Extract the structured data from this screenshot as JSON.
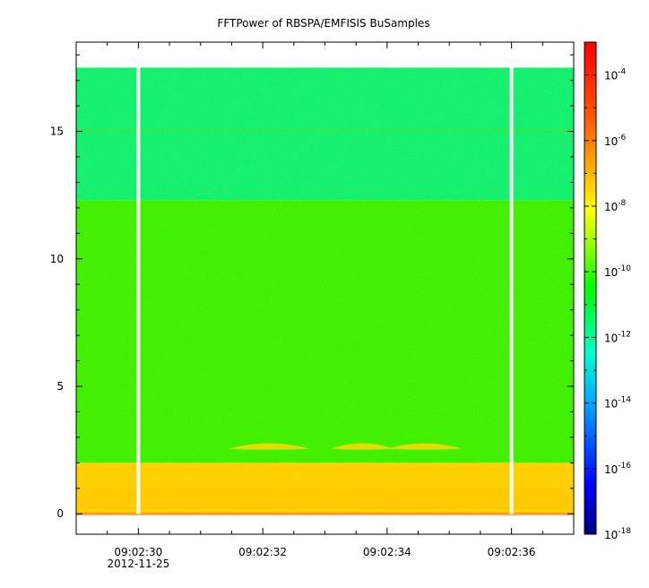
{
  "chart_data": {
    "type": "heatmap",
    "title": "FFTPower of RBSPA/EMFISIS  BuSamples",
    "xlabel": "",
    "ylabel": "",
    "x_axis": {
      "type": "time",
      "range": [
        "09:02:29.0",
        "09:02:37.0"
      ],
      "ticks": [
        "09:02:30",
        "09:02:32",
        "09:02:34",
        "09:02:36"
      ],
      "tick_seconds": [
        30,
        32,
        34,
        36
      ],
      "range_seconds": [
        29.0,
        37.0
      ],
      "date_label": "2012-11-25"
    },
    "y_axis": {
      "range": [
        -0.8,
        18.5
      ],
      "ticks": [
        0,
        5,
        10,
        15
      ]
    },
    "colorbar": {
      "scale": "log",
      "range": [
        "1e-18",
        "1e-3"
      ],
      "tick_exponents": [
        -18,
        -16,
        -14,
        -12,
        -10,
        -8,
        -6,
        -4
      ],
      "tick_base": "10",
      "tick_labels": [
        "-18",
        "-16",
        "-14",
        "-12",
        "-10",
        "-8",
        "-6",
        "-4"
      ],
      "colors": [
        "#00007f",
        "#0000ff",
        "#00aaff",
        "#00ffcc",
        "#00ff00",
        "#aaff00",
        "#ffff00",
        "#ffaa00",
        "#ff5500",
        "#ff0000"
      ]
    },
    "data_extent": {
      "x_seconds": [
        29.0,
        37.0
      ],
      "y": [
        0,
        17.5
      ]
    },
    "gaps_seconds": [
      30.0,
      36.0
    ],
    "bands": [
      {
        "y_range": [
          0,
          2.0
        ],
        "log10_power": -8.5,
        "color": "#ffd000"
      },
      {
        "y_range": [
          2.0,
          12.3
        ],
        "log10_power": -10.0,
        "color": "#3cf000"
      },
      {
        "y_range": [
          12.3,
          17.5
        ],
        "log10_power": -11.5,
        "color": "#10f070"
      }
    ],
    "grid": false
  }
}
